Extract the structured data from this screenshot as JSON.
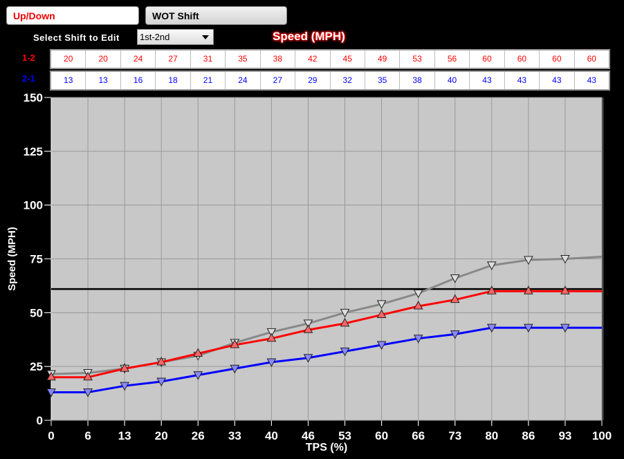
{
  "buttons": {
    "up_down": "Up/Down",
    "wot_shift": "WOT Shift"
  },
  "shift_select": {
    "label": "Select Shift to Edit",
    "value": "1st-2nd"
  },
  "table_title": "Speed (MPH)",
  "table": {
    "rows": [
      {
        "label": "1-2",
        "color": "#ff0000",
        "values": [
          20,
          20,
          24,
          27,
          31,
          35,
          38,
          42,
          45,
          49,
          53,
          56,
          60,
          60,
          60,
          60
        ]
      },
      {
        "label": "2-1",
        "color": "#0000ff",
        "values": [
          13,
          13,
          16,
          18,
          21,
          24,
          27,
          29,
          32,
          35,
          38,
          40,
          43,
          43,
          43,
          43
        ]
      }
    ]
  },
  "chart_data": {
    "type": "line",
    "xlabel": "TPS (%)",
    "ylabel": "Speed (MPH)",
    "categories": [
      "0",
      "6",
      "13",
      "20",
      "26",
      "33",
      "40",
      "46",
      "53",
      "60",
      "66",
      "73",
      "80",
      "86",
      "93",
      "100"
    ],
    "yticks": [
      0,
      25,
      50,
      75,
      100,
      125,
      150
    ],
    "ylim": [
      0,
      150
    ],
    "grid": true,
    "series": [
      {
        "color": "#888888",
        "marker": "triangle-down",
        "values": [
          21.5,
          22,
          24,
          27,
          30,
          36,
          41,
          45,
          50,
          54,
          59,
          66,
          72,
          74.5,
          75,
          76
        ]
      },
      {
        "name": "1-2",
        "color": "#ff0000",
        "marker": "triangle-up",
        "values": [
          20,
          20,
          24,
          27,
          31,
          35,
          38,
          42,
          45,
          49,
          53,
          56,
          60,
          60,
          60,
          60
        ]
      },
      {
        "name": "2-1",
        "color": "#0000ff",
        "marker": "triangle-down",
        "values": [
          13,
          13,
          16,
          18,
          21,
          24,
          27,
          29,
          32,
          35,
          38,
          40,
          43,
          43,
          43,
          43
        ]
      }
    ],
    "reference_line": {
      "y": 61,
      "color": "#000000"
    }
  }
}
